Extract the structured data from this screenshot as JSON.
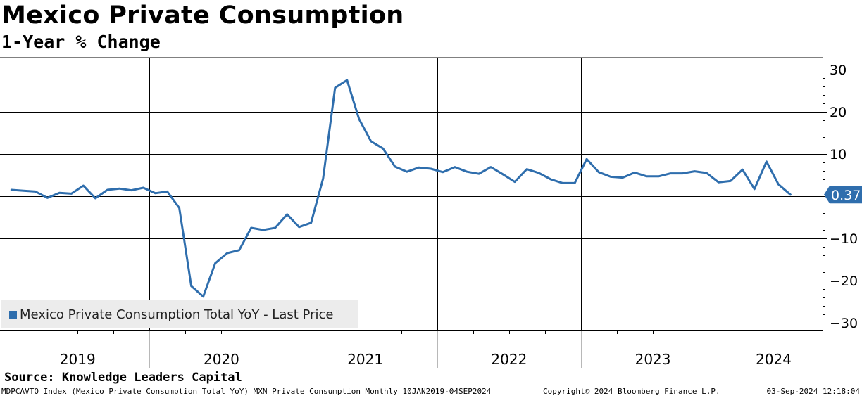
{
  "title": "Mexico Private Consumption",
  "subtitle": "1-Year % Change",
  "source": "Source: Knowledge Leaders Capital",
  "footer": {
    "left": "MDPCAVTO Index (Mexico Private Consumption Total YoY) MXN Private Consumption  Monthly 10JAN2019-04SEP2024",
    "copyright": "Copyright© 2024 Bloomberg Finance L.P.",
    "timestamp": "03-Sep-2024 12:18:04"
  },
  "legend": {
    "label": "Mexico Private Consumption Total YoY - Last Price"
  },
  "colors": {
    "series": "#2f6ead",
    "last_badge": "#2f6ead",
    "grid": "#000000"
  },
  "chart_data": {
    "type": "line",
    "title": "Mexico Private Consumption",
    "subtitle": "1-Year % Change",
    "xlabel": "",
    "ylabel": "",
    "ylim": [
      -30,
      30
    ],
    "yticks": [
      30,
      20,
      10,
      -10,
      -20,
      -30
    ],
    "xlim": [
      2018.96,
      2024.68
    ],
    "x_tick_labels": [
      "2019",
      "2020",
      "2021",
      "2022",
      "2023",
      "2024"
    ],
    "x_year_boundaries": [
      2020,
      2021,
      2022,
      2023,
      2024
    ],
    "last_value": 0.37,
    "last_value_label": "0.37",
    "series": [
      {
        "name": "Mexico Private Consumption Total YoY - Last Price",
        "start": "2019-01",
        "frequency": "monthly",
        "values": [
          1.5,
          1.3,
          1.1,
          -0.4,
          0.8,
          0.6,
          2.5,
          -0.5,
          1.5,
          1.8,
          1.4,
          2.0,
          0.7,
          1.1,
          -2.8,
          -21.3,
          -23.8,
          -15.9,
          -13.5,
          -12.8,
          -7.5,
          -8.0,
          -7.5,
          -4.3,
          -7.3,
          -6.3,
          4.2,
          25.7,
          27.5,
          18.3,
          13.0,
          11.3,
          7.0,
          5.8,
          6.8,
          6.5,
          5.7,
          6.9,
          5.8,
          5.3,
          6.9,
          5.2,
          3.4,
          6.4,
          5.5,
          4.0,
          3.1,
          3.1,
          8.8,
          5.7,
          4.6,
          4.4,
          5.6,
          4.7,
          4.7,
          5.4,
          5.4,
          5.9,
          5.5,
          3.3,
          3.6,
          6.3,
          1.7,
          8.2,
          2.8,
          0.37
        ]
      }
    ]
  }
}
